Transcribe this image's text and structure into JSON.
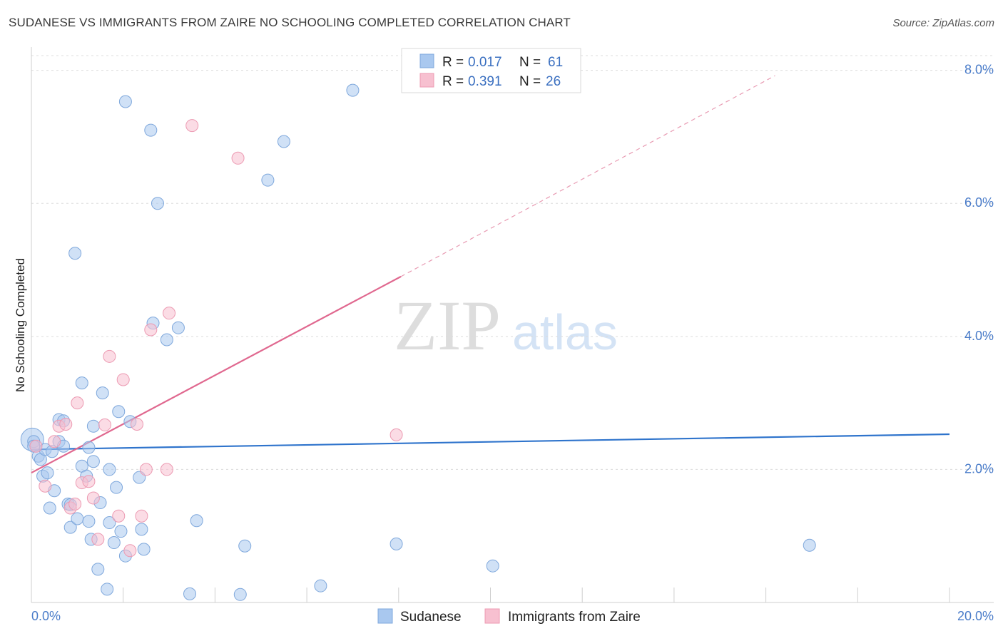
{
  "chart_data": {
    "type": "scatter",
    "title": "SUDANESE VS IMMIGRANTS FROM ZAIRE NO SCHOOLING COMPLETED CORRELATION CHART",
    "source": "Source: ZipAtlas.com",
    "xlabel": "",
    "ylabel": "No Schooling Completed",
    "xlim": [
      0,
      20
    ],
    "ylim": [
      0,
      8.35
    ],
    "x_tick_labels": {
      "min": "0.0%",
      "max": "20.0%"
    },
    "y_ticks": [
      {
        "value": 2,
        "label": "2.0%"
      },
      {
        "value": 4,
        "label": "4.0%"
      },
      {
        "value": 6,
        "label": "6.0%"
      },
      {
        "value": 8,
        "label": "8.0%"
      }
    ],
    "watermark": {
      "zip": "ZIP",
      "atlas": "atlas"
    },
    "legend": {
      "rows": [
        {
          "r_label": "R =",
          "r_value": "0.017",
          "n_label": "N =",
          "n_value": "61"
        },
        {
          "r_label": "R =",
          "r_value": "0.391",
          "n_label": "N =",
          "n_value": "26"
        }
      ]
    },
    "series": [
      {
        "name": "Sudanese",
        "color": "#a9c8ef",
        "stroke": "#7fa8dc",
        "trend": {
          "x0": 0,
          "y0": 2.3,
          "x1": 20,
          "y1": 2.53,
          "color": "#2f74cc"
        },
        "points": [
          [
            0.05,
            2.42
          ],
          [
            0.05,
            2.35
          ],
          [
            0.15,
            2.2
          ],
          [
            0.2,
            2.15
          ],
          [
            0.3,
            2.3
          ],
          [
            0.25,
            1.9
          ],
          [
            0.35,
            1.95
          ],
          [
            0.45,
            2.27
          ],
          [
            0.5,
            1.68
          ],
          [
            0.4,
            1.42
          ],
          [
            0.6,
            2.42
          ],
          [
            0.6,
            2.75
          ],
          [
            0.7,
            2.35
          ],
          [
            0.7,
            2.73
          ],
          [
            0.8,
            1.48
          ],
          [
            0.85,
            1.47
          ],
          [
            0.85,
            1.13
          ],
          [
            0.95,
            5.25
          ],
          [
            1.0,
            1.26
          ],
          [
            1.1,
            3.3
          ],
          [
            1.1,
            2.05
          ],
          [
            1.2,
            1.9
          ],
          [
            1.25,
            1.22
          ],
          [
            1.25,
            2.33
          ],
          [
            1.3,
            0.95
          ],
          [
            1.35,
            2.65
          ],
          [
            1.35,
            2.12
          ],
          [
            1.45,
            0.5
          ],
          [
            1.5,
            1.5
          ],
          [
            1.55,
            3.15
          ],
          [
            1.65,
            0.2
          ],
          [
            1.7,
            2.0
          ],
          [
            1.7,
            1.2
          ],
          [
            1.8,
            0.9
          ],
          [
            1.85,
            1.73
          ],
          [
            1.9,
            2.87
          ],
          [
            1.95,
            1.07
          ],
          [
            2.05,
            0.7
          ],
          [
            2.05,
            7.53
          ],
          [
            2.15,
            2.72
          ],
          [
            2.35,
            1.88
          ],
          [
            2.4,
            1.1
          ],
          [
            2.45,
            0.8
          ],
          [
            2.6,
            7.1
          ],
          [
            2.65,
            4.2
          ],
          [
            2.75,
            6.0
          ],
          [
            2.95,
            3.95
          ],
          [
            3.2,
            4.13
          ],
          [
            3.45,
            0.13
          ],
          [
            3.6,
            1.23
          ],
          [
            4.55,
            0.12
          ],
          [
            4.65,
            0.85
          ],
          [
            5.15,
            6.35
          ],
          [
            5.5,
            6.93
          ],
          [
            6.3,
            0.25
          ],
          [
            7.0,
            7.7
          ],
          [
            7.95,
            0.88
          ],
          [
            10.05,
            0.55
          ],
          [
            16.95,
            0.86
          ]
        ],
        "big_points": [
          [
            0.02,
            2.45
          ]
        ]
      },
      {
        "name": "Immigrants from Zaire",
        "color": "#f7c0d0",
        "stroke": "#ec9ab2",
        "trend": {
          "x0": 0,
          "y0": 1.95,
          "x1": 8.05,
          "y1": 4.9,
          "color": "#e0688f"
        },
        "trend_dashed": {
          "x0": 8.05,
          "y0": 4.9,
          "x1": 16.2,
          "y1": 7.92,
          "color": "#e89ab2"
        },
        "points": [
          [
            0.1,
            2.35
          ],
          [
            0.3,
            1.75
          ],
          [
            0.5,
            2.42
          ],
          [
            0.6,
            2.65
          ],
          [
            0.75,
            2.68
          ],
          [
            0.85,
            1.42
          ],
          [
            0.95,
            1.48
          ],
          [
            1.0,
            3.0
          ],
          [
            1.1,
            1.8
          ],
          [
            1.25,
            1.82
          ],
          [
            1.35,
            1.57
          ],
          [
            1.45,
            0.95
          ],
          [
            1.6,
            2.67
          ],
          [
            1.7,
            3.7
          ],
          [
            1.9,
            1.3
          ],
          [
            2.0,
            3.35
          ],
          [
            2.15,
            0.78
          ],
          [
            2.3,
            2.68
          ],
          [
            2.4,
            1.3
          ],
          [
            2.5,
            2.0
          ],
          [
            2.6,
            4.1
          ],
          [
            2.95,
            2.0
          ],
          [
            3.0,
            4.35
          ],
          [
            3.5,
            7.17
          ],
          [
            4.5,
            6.68
          ],
          [
            7.95,
            2.52
          ]
        ]
      }
    ]
  }
}
